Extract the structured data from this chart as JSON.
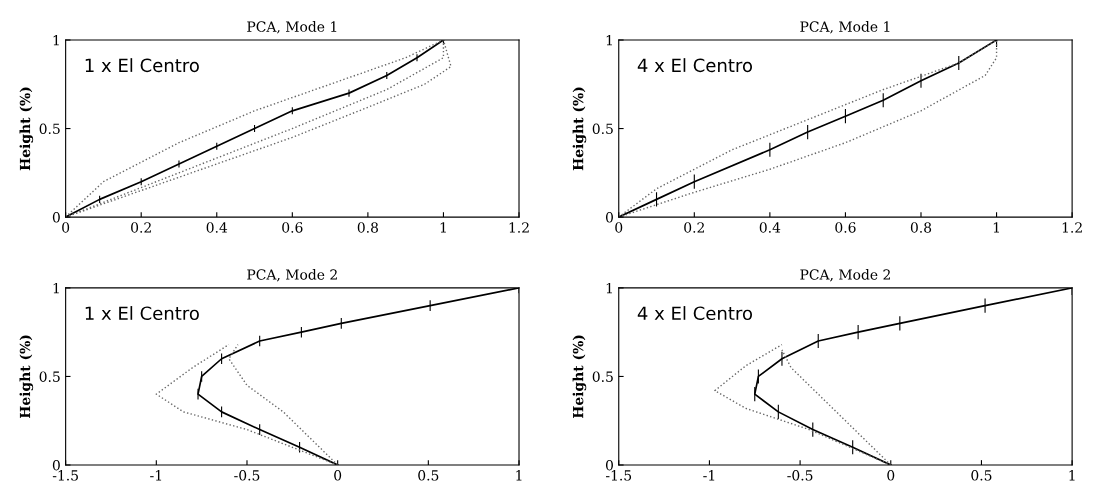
{
  "chart_data": [
    {
      "type": "line",
      "title": "PCA, Mode 1",
      "ylabel": "Height (%)",
      "annotations": [
        "1 x El Centro"
      ],
      "xlim": [
        0,
        1.2
      ],
      "xticks": [
        0,
        0.2,
        0.4,
        0.6,
        0.8,
        1,
        1.2
      ],
      "ylim": [
        0,
        1
      ],
      "yticks": [
        0,
        0.5,
        1
      ],
      "grid": false,
      "legend": false,
      "series": [
        {
          "color": "#000000",
          "line_style": "solid",
          "x": [
            0,
            0.09,
            0.2,
            0.3,
            0.4,
            0.5,
            0.6,
            0.75,
            0.85,
            0.93,
            1
          ],
          "values": [
            0,
            0.1,
            0.2,
            0.3,
            0.4,
            0.5,
            0.6,
            0.7,
            0.8,
            0.9,
            1
          ],
          "errors": [
            null,
            0.02,
            0.02,
            0.02,
            0.02,
            0.02,
            0.02,
            0.02,
            0.02,
            0.02,
            0.02
          ]
        },
        {
          "color": "#666666",
          "line_style": "dotted",
          "x": [
            0,
            0.1,
            0.3,
            0.5,
            0.7,
            0.9,
            1
          ],
          "values": [
            0,
            0.2,
            0.42,
            0.6,
            0.75,
            0.9,
            1
          ]
        },
        {
          "color": "#666666",
          "line_style": "dotted",
          "x": [
            0,
            0.2,
            0.4,
            0.6,
            0.8,
            0.95,
            1.02,
            1
          ],
          "values": [
            0,
            0.15,
            0.3,
            0.45,
            0.62,
            0.75,
            0.85,
            1
          ]
        },
        {
          "color": "#666666",
          "line_style": "dotted",
          "x": [
            0,
            0.3,
            0.6,
            0.85,
            1,
            1
          ],
          "values": [
            0,
            0.25,
            0.5,
            0.72,
            0.9,
            1
          ]
        }
      ]
    },
    {
      "type": "line",
      "title": "PCA, Mode 1",
      "ylabel": "Height (%)",
      "annotations": [
        "4 x El Centro"
      ],
      "xlim": [
        0,
        1.2
      ],
      "xticks": [
        0,
        0.2,
        0.4,
        0.6,
        0.8,
        1,
        1.2
      ],
      "ylim": [
        0,
        1
      ],
      "yticks": [
        0,
        0.5,
        1
      ],
      "grid": false,
      "legend": false,
      "series": [
        {
          "color": "#000000",
          "line_style": "solid",
          "x": [
            0,
            0.1,
            0.2,
            0.4,
            0.5,
            0.6,
            0.7,
            0.8,
            0.9,
            1
          ],
          "values": [
            0,
            0.1,
            0.2,
            0.38,
            0.48,
            0.57,
            0.66,
            0.77,
            0.87,
            1
          ],
          "errors": [
            null,
            0.04,
            0.04,
            0.04,
            0.04,
            0.04,
            0.04,
            0.04,
            0.04,
            0.04
          ]
        },
        {
          "color": "#666666",
          "line_style": "dotted",
          "x": [
            0,
            0.1,
            0.3,
            0.5,
            0.7,
            0.9,
            1
          ],
          "values": [
            0,
            0.16,
            0.38,
            0.55,
            0.72,
            0.87,
            1
          ]
        },
        {
          "color": "#666666",
          "line_style": "dotted",
          "x": [
            0,
            0.2,
            0.4,
            0.6,
            0.8,
            0.97,
            1,
            1
          ],
          "values": [
            0,
            0.14,
            0.27,
            0.42,
            0.6,
            0.8,
            0.9,
            1
          ]
        }
      ]
    },
    {
      "type": "line",
      "title": "PCA, Mode 2",
      "ylabel": "Height (%)",
      "annotations": [
        "1 x El Centro"
      ],
      "xlim": [
        -1.5,
        1
      ],
      "xticks": [
        -1.5,
        -1,
        -0.5,
        0,
        0.5,
        1
      ],
      "ylim": [
        0,
        1
      ],
      "yticks": [
        0,
        0.5,
        1
      ],
      "grid": false,
      "legend": false,
      "series": [
        {
          "color": "#000000",
          "line_style": "solid",
          "x": [
            0,
            -0.21,
            -0.43,
            -0.64,
            -0.77,
            -0.75,
            -0.64,
            -0.43,
            -0.2,
            0.02,
            0.51,
            1
          ],
          "values": [
            0,
            0.1,
            0.2,
            0.3,
            0.4,
            0.5,
            0.6,
            0.7,
            0.75,
            0.8,
            0.9,
            1
          ],
          "errors": [
            null,
            0.03,
            0.03,
            0.03,
            0.03,
            0.03,
            0.03,
            0.03,
            0.03,
            0.03,
            0.03,
            0.03
          ]
        },
        {
          "color": "#666666",
          "line_style": "dotted",
          "x": [
            0,
            -0.5,
            -0.85,
            -1,
            -0.8,
            -0.6
          ],
          "values": [
            0,
            0.2,
            0.3,
            0.4,
            0.55,
            0.68
          ]
        },
        {
          "color": "#666666",
          "line_style": "dotted",
          "x": [
            0,
            -0.1,
            -0.3,
            -0.5,
            -0.6,
            -0.55
          ],
          "values": [
            0,
            0.1,
            0.3,
            0.45,
            0.6,
            0.68
          ]
        }
      ]
    },
    {
      "type": "line",
      "title": "PCA, Mode 2",
      "ylabel": "Height (%)",
      "annotations": [
        "4 x El Centro"
      ],
      "xlim": [
        -1.5,
        1
      ],
      "xticks": [
        -1.5,
        -1,
        -0.5,
        0,
        0.5,
        1
      ],
      "ylim": [
        0,
        1
      ],
      "yticks": [
        0,
        0.5,
        1
      ],
      "grid": false,
      "legend": false,
      "series": [
        {
          "color": "#000000",
          "line_style": "solid",
          "x": [
            0,
            -0.21,
            -0.43,
            -0.62,
            -0.75,
            -0.73,
            -0.6,
            -0.4,
            -0.18,
            0.05,
            0.52,
            1
          ],
          "values": [
            0,
            0.1,
            0.2,
            0.3,
            0.4,
            0.5,
            0.6,
            0.7,
            0.75,
            0.8,
            0.9,
            1
          ],
          "errors": [
            null,
            0.04,
            0.04,
            0.04,
            0.04,
            0.04,
            0.04,
            0.04,
            0.04,
            0.04,
            0.04,
            0.04
          ]
        },
        {
          "color": "#666666",
          "line_style": "dotted",
          "x": [
            0,
            -0.45,
            -0.8,
            -0.97,
            -0.8,
            -0.6
          ],
          "values": [
            0,
            0.2,
            0.32,
            0.42,
            0.56,
            0.68
          ]
        },
        {
          "color": "#666666",
          "line_style": "dotted",
          "x": [
            0,
            -0.2,
            -0.4,
            -0.55,
            -0.6
          ],
          "values": [
            0,
            0.2,
            0.4,
            0.55,
            0.65
          ]
        }
      ]
    }
  ]
}
